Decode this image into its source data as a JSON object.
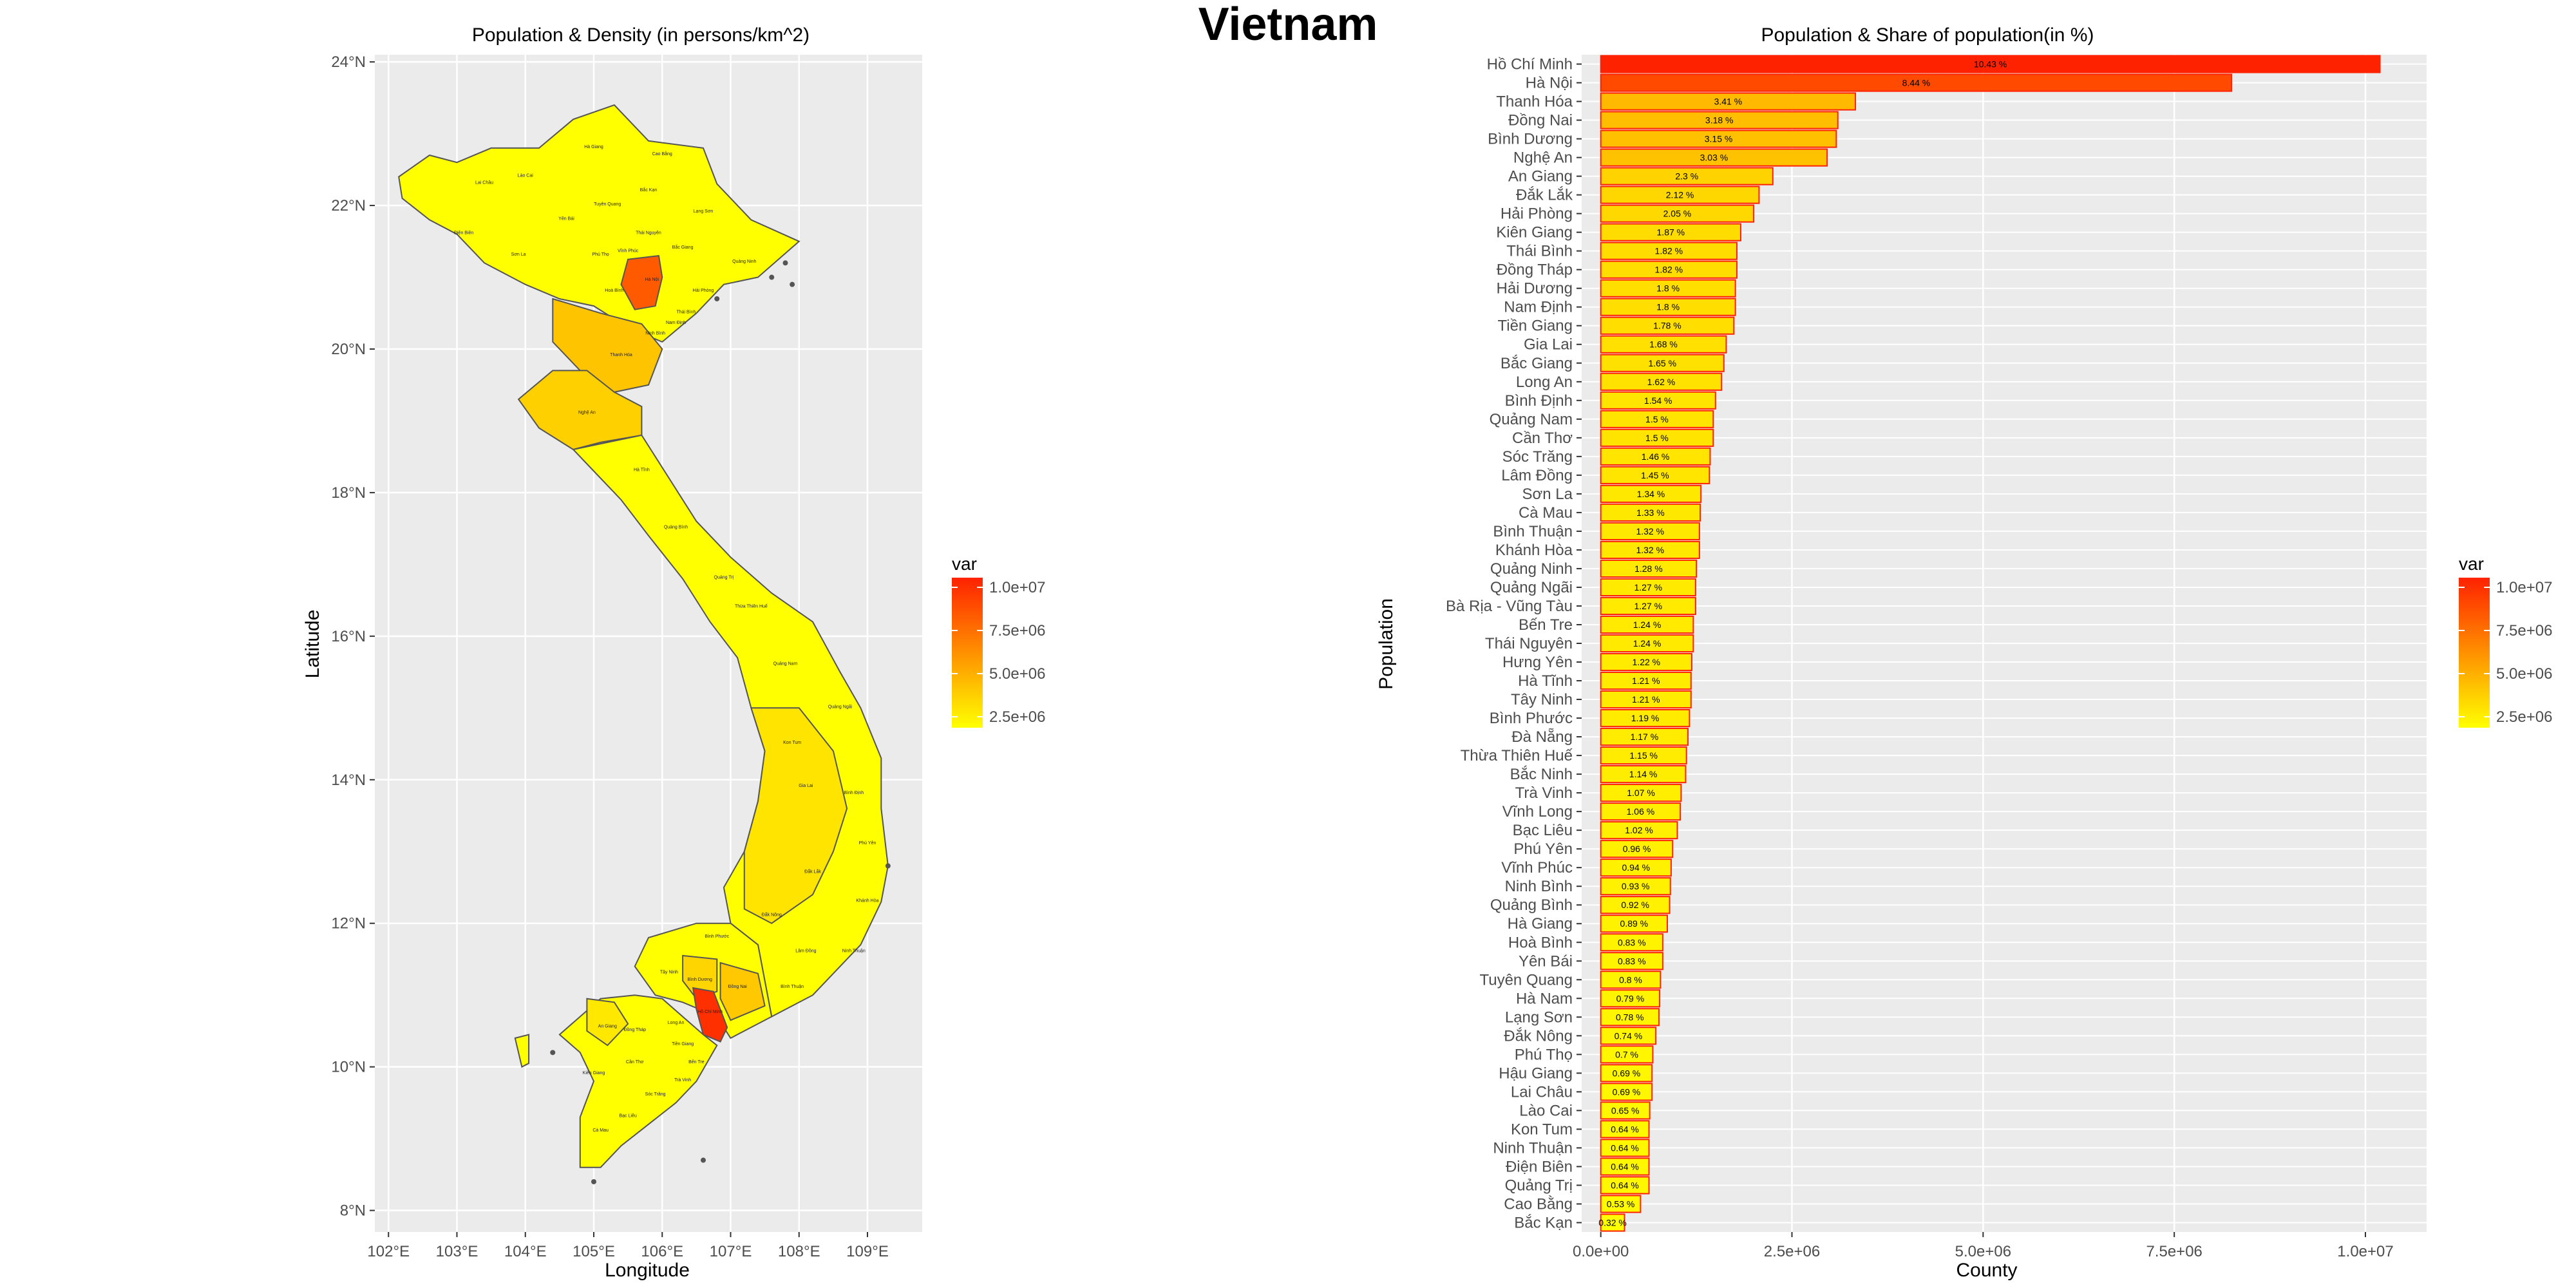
{
  "page": {
    "title": "Vietnam",
    "colors": {
      "low": "#ffff00",
      "high": "#ff2200",
      "border": "#555555",
      "panel": "#ebebeb",
      "grid": "#ffffff"
    }
  },
  "chart_data": [
    {
      "type": "choropleth-map",
      "title": "Population & Density (in persons/km^2)",
      "xlabel": "Longitude",
      "ylabel": "Latitude",
      "xlim": [
        101.8,
        109.8
      ],
      "ylim": [
        7.7,
        24.1
      ],
      "x_ticks": [
        "102°E",
        "103°E",
        "104°E",
        "105°E",
        "106°E",
        "107°E",
        "108°E",
        "109°E"
      ],
      "y_ticks": [
        "8°N",
        "10°N",
        "12°N",
        "14°N",
        "16°N",
        "18°N",
        "20°N",
        "22°N",
        "24°N"
      ],
      "legend": {
        "title": "var",
        "labels": [
          "1.0e+07",
          "7.5e+06",
          "5.0e+06",
          "2.5e+06"
        ],
        "placement": "right"
      },
      "grid": true,
      "region_labels": [
        "Hà Giang",
        "Cao Bằng",
        "Lào Cai",
        "Lai Châu",
        "Điện Biên",
        "Sơn La",
        "Yên Bái",
        "Tuyên Quang",
        "Bắc Kạn",
        "Lạng Sơn",
        "Thái Nguyên",
        "Phú Thọ",
        "Vĩnh Phúc",
        "Bắc Giang",
        "Quảng Ninh",
        "Hà Nội",
        "Hoà Bình",
        "Ninh Bình",
        "Nam Định",
        "Thái Bình",
        "Hải Phòng",
        "Thanh Hóa",
        "Nghệ An",
        "Hà Tĩnh",
        "Quảng Bình",
        "Quảng Trị",
        "Thừa Thiên Huế",
        "Quảng Nam",
        "Quảng Ngãi",
        "Kon Tum",
        "Gia Lai",
        "Bình Định",
        "Phú Yên",
        "Đắk Lắk",
        "Khánh Hòa",
        "Đắk Nông",
        "Lâm Đồng",
        "Ninh Thuận",
        "Bình Phước",
        "Tây Ninh",
        "Bình Dương",
        "Đồng Nai",
        "Bình Thuận",
        "Hồ Chí Minh",
        "Long An",
        "Đồng Tháp",
        "An Giang",
        "Kiên Giang",
        "Cần Thơ",
        "Tiền Giang",
        "Bến Tre",
        "Trà Vinh",
        "Sóc Trăng",
        "Bạc Liêu",
        "Cà Mau"
      ]
    },
    {
      "type": "bar",
      "orientation": "horizontal",
      "title": "Population & Share of population(in %)",
      "xlabel": "County",
      "ylabel": "Population",
      "xlim": [
        -250000,
        10800000
      ],
      "x_ticks": [
        "0.0e+00",
        "2.5e+06",
        "5.0e+06",
        "7.5e+06",
        "1.0e+07"
      ],
      "legend": {
        "title": "var",
        "labels": [
          "1.0e+07",
          "7.5e+06",
          "5.0e+06",
          "2.5e+06"
        ],
        "placement": "right"
      },
      "grid": true,
      "categories": [
        "Hồ Chí Minh",
        "Hà Nội",
        "Thanh Hóa",
        "Đồng Nai",
        "Bình Dương",
        "Nghệ An",
        "An Giang",
        "Đắk Lắk",
        "Hải Phòng",
        "Kiên Giang",
        "Thái Bình",
        "Đồng Tháp",
        "Hải Dương",
        "Nam Định",
        "Tiền Giang",
        "Gia Lai",
        "Bắc Giang",
        "Long An",
        "Bình Định",
        "Quảng Nam",
        "Cần Thơ",
        "Sóc Trăng",
        "Lâm Đồng",
        "Sơn La",
        "Cà Mau",
        "Bình Thuận",
        "Khánh Hòa",
        "Quảng Ninh",
        "Quảng Ngãi",
        "Bà Rịa - Vũng Tàu",
        "Bến Tre",
        "Thái Nguyên",
        "Hưng Yên",
        "Hà Tĩnh",
        "Tây Ninh",
        "Bình Phước",
        "Đà Nẵng",
        "Thừa Thiên Huế",
        "Bắc Ninh",
        "Trà Vinh",
        "Vĩnh Long",
        "Bạc Liêu",
        "Phú Yên",
        "Vĩnh Phúc",
        "Ninh Bình",
        "Quảng Bình",
        "Hà Giang",
        "Hoà Bình",
        "Yên Bái",
        "Tuyên Quang",
        "Hà Nam",
        "Lạng Sơn",
        "Đắk Nông",
        "Phú Thọ",
        "Hậu Giang",
        "Lai Châu",
        "Lào Cai",
        "Kon Tum",
        "Ninh Thuận",
        "Điện Biên",
        "Quảng Trị",
        "Cao Bằng",
        "Bắc Kạn"
      ],
      "values": [
        10190000,
        8250000,
        3330000,
        3100000,
        3080000,
        2960000,
        2250000,
        2070000,
        2000000,
        1830000,
        1780000,
        1780000,
        1760000,
        1760000,
        1740000,
        1640000,
        1610000,
        1580000,
        1500000,
        1470000,
        1470000,
        1430000,
        1420000,
        1310000,
        1300000,
        1290000,
        1290000,
        1250000,
        1240000,
        1240000,
        1210000,
        1210000,
        1190000,
        1180000,
        1180000,
        1160000,
        1140000,
        1120000,
        1110000,
        1050000,
        1040000,
        1000000,
        940000,
        920000,
        910000,
        900000,
        870000,
        810000,
        810000,
        780000,
        770000,
        760000,
        720000,
        680000,
        670000,
        670000,
        640000,
        630000,
        630000,
        630000,
        630000,
        520000,
        310000
      ],
      "labels": [
        "10.43 %",
        "8.44 %",
        "3.41 %",
        "3.18 %",
        "3.15 %",
        "3.03 %",
        "2.3 %",
        "2.12 %",
        "2.05 %",
        "1.87 %",
        "1.82 %",
        "1.82 %",
        "1.8 %",
        "1.8 %",
        "1.78 %",
        "1.68 %",
        "1.65 %",
        "1.62 %",
        "1.54 %",
        "1.5 %",
        "1.5 %",
        "1.46 %",
        "1.45 %",
        "1.34 %",
        "1.33 %",
        "1.32 %",
        "1.32 %",
        "1.28 %",
        "1.27 %",
        "1.27 %",
        "1.24 %",
        "1.24 %",
        "1.22 %",
        "1.21 %",
        "1.21 %",
        "1.19 %",
        "1.17 %",
        "1.15 %",
        "1.14 %",
        "1.07 %",
        "1.06 %",
        "1.02 %",
        "0.96 %",
        "0.94 %",
        "0.93 %",
        "0.92 %",
        "0.89 %",
        "0.83 %",
        "0.83 %",
        "0.8 %",
        "0.79 %",
        "0.78 %",
        "0.74 %",
        "0.7 %",
        "0.69 %",
        "0.69 %",
        "0.65 %",
        "0.64 %",
        "0.64 %",
        "0.64 %",
        "0.64 %",
        "0.53 %",
        "0.32 %"
      ]
    }
  ]
}
